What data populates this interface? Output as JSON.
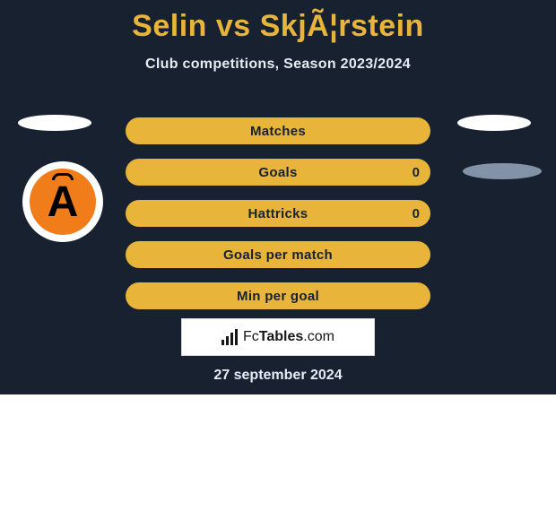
{
  "colors": {
    "page_bg": "#ffffff",
    "panel_bg": "#17212f",
    "accent": "#e8b43a",
    "text_light": "#e6ecf5",
    "text_dark": "#17212f",
    "white": "#ffffff",
    "ellipse_gray": "#8293a8",
    "brand_border": "#d9d9d9",
    "brand_text": "#161616",
    "logo_orange": "#f07c1a",
    "logo_black": "#000000"
  },
  "title": "Selin vs SkjÃ¦rstein",
  "subtitle": "Club competitions, Season 2023/2024",
  "stats": [
    {
      "label": "Matches",
      "bg": "accent",
      "text": "text_dark",
      "value_right": null
    },
    {
      "label": "Goals",
      "bg": "accent",
      "text": "text_dark",
      "value_right": "0"
    },
    {
      "label": "Hattricks",
      "bg": "accent",
      "text": "text_dark",
      "value_right": "0"
    },
    {
      "label": "Goals per match",
      "bg": "accent",
      "text": "text_dark",
      "value_right": null
    },
    {
      "label": "Min per goal",
      "bg": "accent",
      "text": "text_dark",
      "value_right": null
    }
  ],
  "club_logo": {
    "letter": "A",
    "outer_bg": "#ffffff",
    "inner_bg": "#f07c1a",
    "letter_color": "#000000",
    "ring_color": "#000000"
  },
  "brand": {
    "icon_bar_heights": [
      6,
      10,
      14,
      18
    ],
    "icon_color": "#161616",
    "text_prefix": "Fc",
    "text_bold": "Tables",
    "text_suffix": ".com"
  },
  "date": "27 september 2024"
}
